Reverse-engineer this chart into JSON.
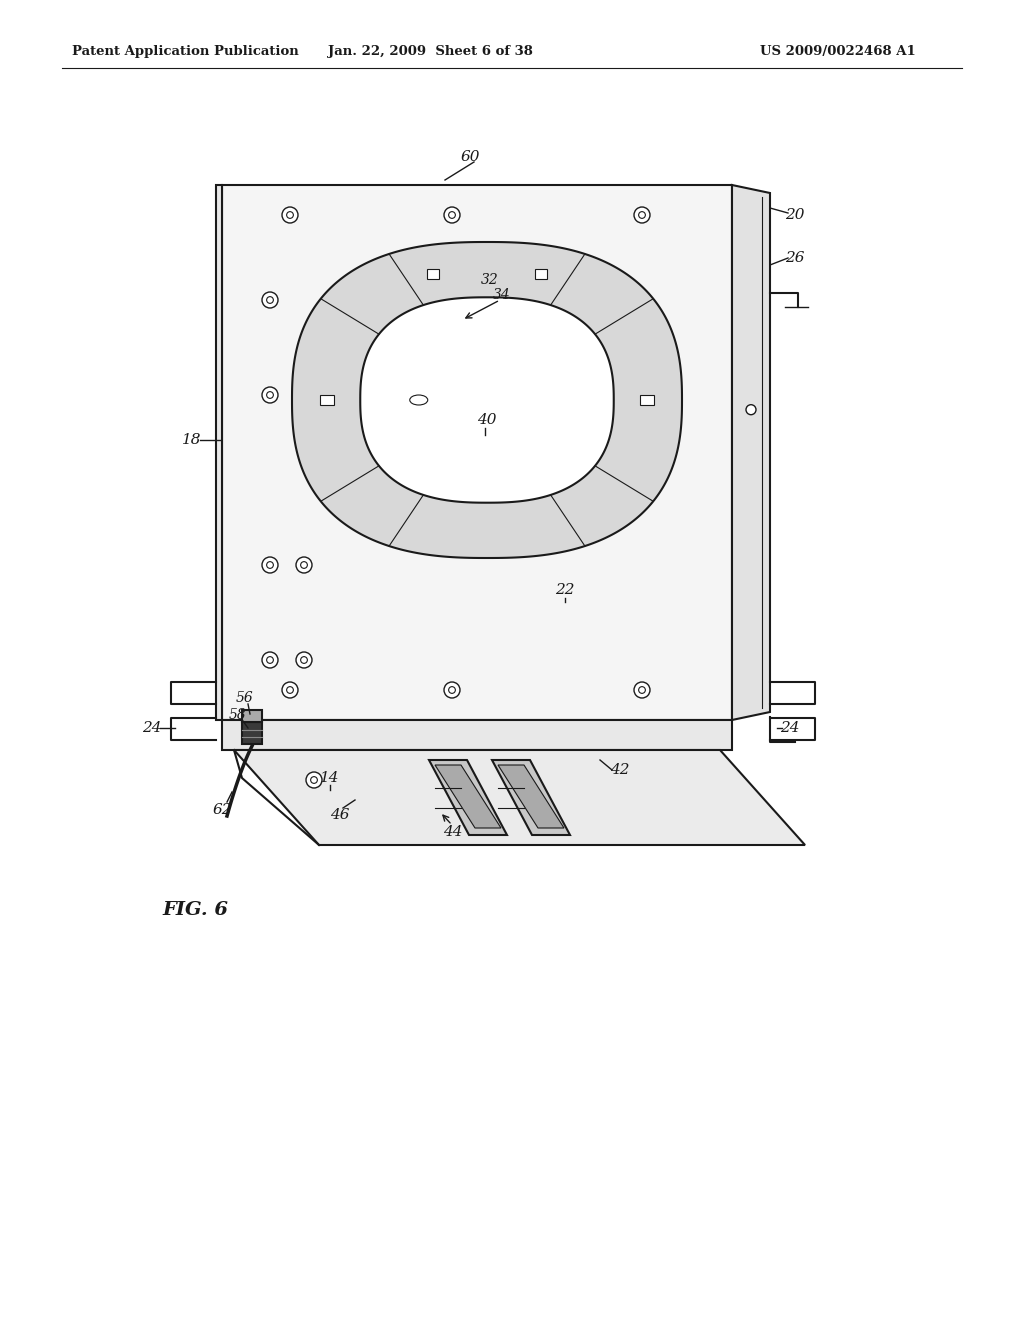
{
  "title_left": "Patent Application Publication",
  "title_mid": "Jan. 22, 2009  Sheet 6 of 38",
  "title_right": "US 2009/0022468 A1",
  "fig_label": "FIG. 6",
  "bg": "#ffffff",
  "lc": "#1a1a1a",
  "lc2": "#555555"
}
